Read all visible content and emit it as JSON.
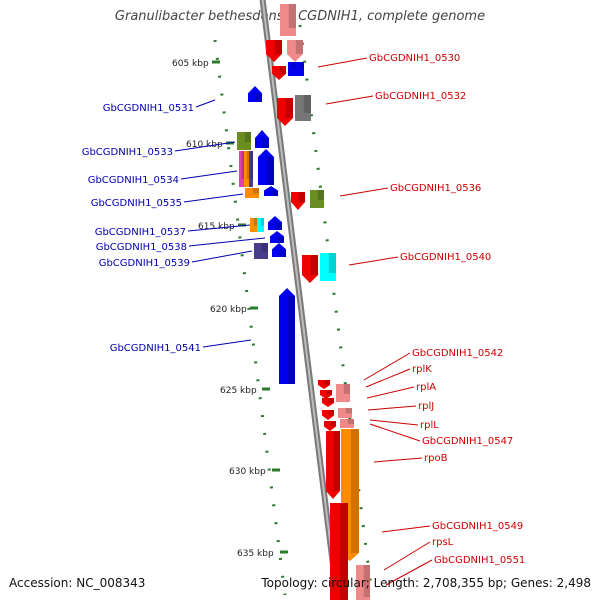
{
  "title": "Granulibacter bethesdensis CGDNIH1, complete genome",
  "footer": {
    "accession": "Accession: NC_008343",
    "topology": "Topology: circular; Length: 2,708,355 bp; Genes: 2,498"
  },
  "colors": {
    "backbone": "#999999",
    "axis_dots": "#2a7a2a",
    "left_labels": "#0000b0",
    "right_labels": "#cc0000",
    "blue": "#0000ee",
    "red": "#ee0000",
    "pink": "#f08a8a",
    "gray": "#777777",
    "olive": "#6b8e23",
    "orange": "#ff8c00",
    "cyan": "#00ffff",
    "magenta": "#e040b0",
    "indigo": "#483d8b"
  },
  "ticks": [
    {
      "label": "605 kbp"
    },
    {
      "label": "610 kbp"
    },
    {
      "label": "615 kbp"
    },
    {
      "label": "620 kbp"
    },
    {
      "label": "625 kbp"
    },
    {
      "label": "630 kbp"
    },
    {
      "label": "635 kbp"
    }
  ],
  "left_labels": [
    {
      "text": "GbCGDNIH1_0531"
    },
    {
      "text": "GbCGDNIH1_0533"
    },
    {
      "text": "GbCGDNIH1_0534"
    },
    {
      "text": "GbCGDNIH1_0535"
    },
    {
      "text": "GbCGDNIH1_0537"
    },
    {
      "text": "GbCGDNIH1_0538"
    },
    {
      "text": "GbCGDNIH1_0539"
    },
    {
      "text": "GbCGDNIH1_0541"
    }
  ],
  "right_labels": [
    {
      "text": "GbCGDNIH1_0530"
    },
    {
      "text": "GbCGDNIH1_0532"
    },
    {
      "text": "GbCGDNIH1_0536"
    },
    {
      "text": "GbCGDNIH1_0540"
    },
    {
      "text": "GbCGDNIH1_0542"
    },
    {
      "text": "rplK"
    },
    {
      "text": "rplA"
    },
    {
      "text": "rplJ"
    },
    {
      "text": "rplL"
    },
    {
      "text": "GbCGDNIH1_0547"
    },
    {
      "text": "rpoB"
    },
    {
      "text": "GbCGDNIH1_0549"
    },
    {
      "text": "rpsL"
    },
    {
      "text": "GbCGDNIH1_0551"
    }
  ]
}
